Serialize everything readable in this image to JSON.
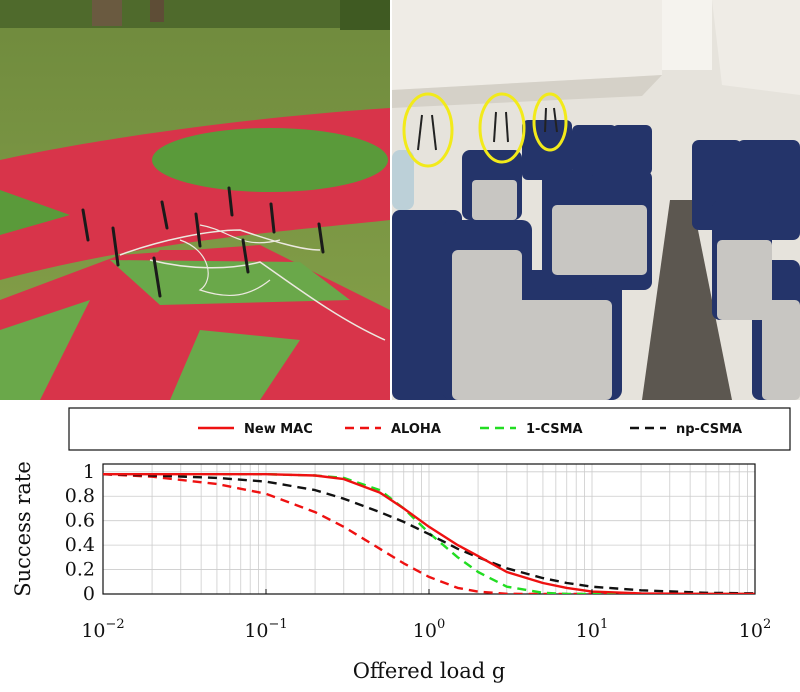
{
  "photos": {
    "outdoor": {
      "description_icon": "outdoor-antenna-testbed-photo"
    },
    "cabin": {
      "description_icon": "aircraft-cabin-photo"
    }
  },
  "colors": {
    "new_mac": "#ee1111",
    "aloha": "#ee1111",
    "csma1": "#22dd22",
    "npcsma": "#111111",
    "grid": "#cccccc"
  },
  "chart_data": {
    "type": "line",
    "title": "",
    "xlabel": "Offered load g",
    "ylabel": "Success rate",
    "xscale": "log",
    "xlim": [
      0.01,
      100
    ],
    "ylim": [
      0,
      1
    ],
    "grid": true,
    "legend_position": "top",
    "x_ticks": [
      {
        "value": 0.01,
        "base": "10",
        "exp": "−2"
      },
      {
        "value": 0.1,
        "base": "10",
        "exp": "−1"
      },
      {
        "value": 1,
        "base": "10",
        "exp": "0"
      },
      {
        "value": 10,
        "base": "10",
        "exp": "1"
      },
      {
        "value": 100,
        "base": "10",
        "exp": "2"
      }
    ],
    "y_ticks": [
      {
        "value": 0,
        "label": "0"
      },
      {
        "value": 0.2,
        "label": "0.2"
      },
      {
        "value": 0.4,
        "label": "0.4"
      },
      {
        "value": 0.6,
        "label": "0.6"
      },
      {
        "value": 0.8,
        "label": "0.8"
      },
      {
        "value": 1,
        "label": "1"
      }
    ],
    "x": [
      0.01,
      0.02,
      0.05,
      0.1,
      0.2,
      0.3,
      0.5,
      0.7,
      1,
      1.5,
      2,
      3,
      5,
      7,
      10,
      20,
      50,
      100
    ],
    "series": [
      {
        "key": "new_mac",
        "name": "New MAC",
        "dash": "solid",
        "values": [
          0.98,
          0.98,
          0.98,
          0.98,
          0.97,
          0.94,
          0.83,
          0.7,
          0.55,
          0.4,
          0.31,
          0.18,
          0.09,
          0.05,
          0.02,
          0.005,
          0.001,
          0
        ]
      },
      {
        "key": "aloha",
        "name": "ALOHA",
        "dash": "dashed",
        "values": [
          0.98,
          0.96,
          0.9,
          0.82,
          0.67,
          0.55,
          0.37,
          0.25,
          0.14,
          0.05,
          0.02,
          0.002,
          0,
          0,
          0,
          0,
          0,
          0
        ]
      },
      {
        "key": "csma1",
        "name": "1-CSMA",
        "dash": "dashed",
        "values": [
          0.98,
          0.98,
          0.98,
          0.98,
          0.97,
          0.95,
          0.85,
          0.7,
          0.5,
          0.3,
          0.18,
          0.06,
          0.01,
          0,
          0,
          0,
          0,
          0
        ]
      },
      {
        "key": "npcsma",
        "name": "np-CSMA",
        "dash": "dashed",
        "values": [
          0.98,
          0.97,
          0.95,
          0.92,
          0.85,
          0.78,
          0.67,
          0.59,
          0.49,
          0.37,
          0.3,
          0.21,
          0.13,
          0.09,
          0.06,
          0.03,
          0.01,
          0.005
        ]
      }
    ]
  }
}
